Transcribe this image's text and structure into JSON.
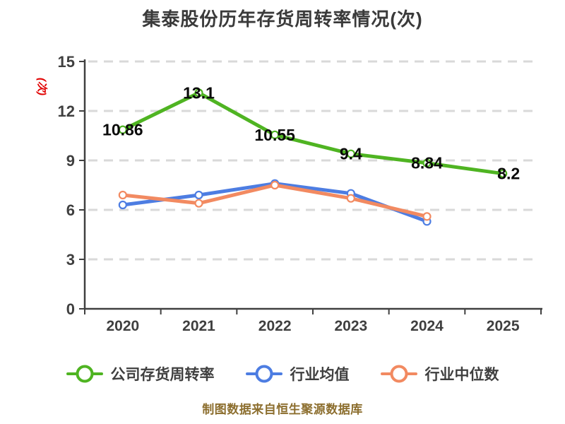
{
  "colors": {
    "title": "#3a3a3a",
    "axis": "#404040",
    "grid": "#d9d9d9",
    "tick_label": "#3f3f3f",
    "data_label": "#0a0a0a",
    "unit_label": "#e10000",
    "caption": "#8c6e2e",
    "plot_background": "#ffffff"
  },
  "chart_data": {
    "type": "line",
    "title": "集泰股份历年存货周转率情况(次)",
    "y_axis_unit": "(次)",
    "x_categories": [
      "2020",
      "2021",
      "2022",
      "2023",
      "2024",
      "2025"
    ],
    "y_ticks": [
      0,
      3,
      6,
      9,
      12,
      15
    ],
    "ylim": [
      0,
      15
    ],
    "grid": "horizontal-dashed",
    "legend_position": "bottom",
    "series": [
      {
        "name": "公司存货周转率",
        "color": "#4fb422",
        "values": [
          10.86,
          13.1,
          10.55,
          9.4,
          8.84,
          8.2
        ],
        "data_labels": true
      },
      {
        "name": "行业均值",
        "color": "#4d7de2",
        "values": [
          6.3,
          6.9,
          7.6,
          7.0,
          5.3
        ],
        "data_labels": false
      },
      {
        "name": "行业中位数",
        "color": "#f28a61",
        "values": [
          6.9,
          6.4,
          7.5,
          6.7,
          5.6
        ],
        "data_labels": false
      }
    ],
    "caption": "制图数据来自恒生聚源数据库"
  }
}
